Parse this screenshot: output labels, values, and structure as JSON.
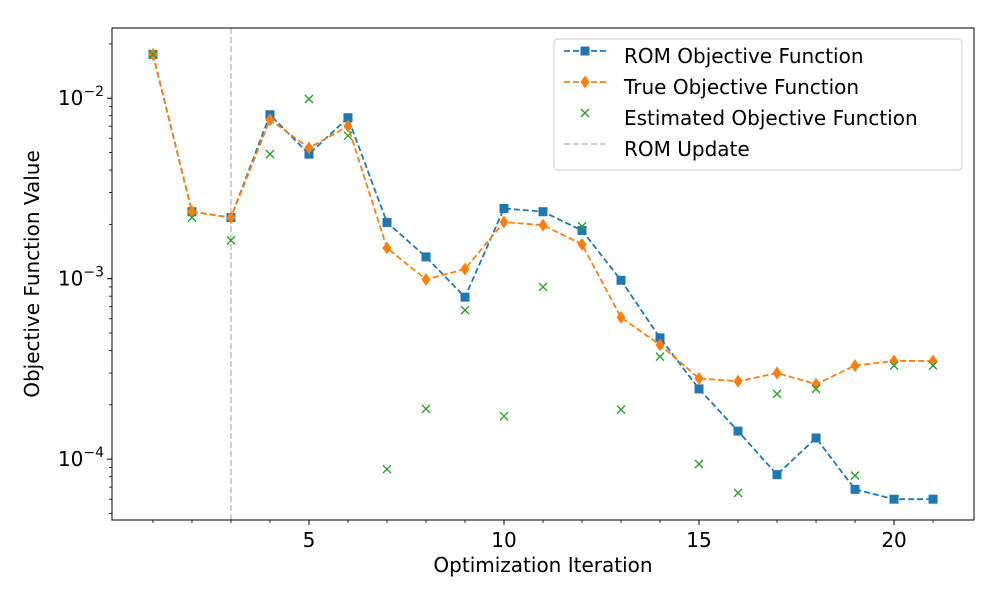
{
  "chart_data": {
    "type": "line",
    "title": "",
    "xlabel": "Optimization Iteration",
    "ylabel": "Objective Function Value",
    "yscale": "log",
    "xlim": [
      -0.05,
      22.05
    ],
    "ylim": [
      4.6e-05,
      0.0245
    ],
    "x_ticks": [
      5,
      10,
      15,
      20
    ],
    "x_tick_labels": [
      "5",
      "10",
      "15",
      "20"
    ],
    "y_ticks": [
      0.0001,
      0.001,
      0.01
    ],
    "y_tick_labels": [
      {
        "base": "10",
        "exp": "−4"
      },
      {
        "base": "10",
        "exp": "−3"
      },
      {
        "base": "10",
        "exp": "−2"
      }
    ],
    "x": [
      1,
      2,
      3,
      4,
      5,
      6,
      7,
      8,
      9,
      10,
      11,
      12,
      13,
      14,
      15,
      16,
      17,
      18,
      19,
      20,
      21
    ],
    "series": [
      {
        "name": "ROM Objective Function",
        "color": "#1f77b4",
        "style": "dashed-line-square",
        "values": [
          0.0175,
          0.00235,
          0.00218,
          0.0081,
          0.0049,
          0.0078,
          0.00205,
          0.00132,
          0.00079,
          0.00245,
          0.00235,
          0.00185,
          0.00098,
          0.00047,
          0.000245,
          0.000143,
          8.2e-05,
          0.000131,
          6.8e-05,
          6e-05,
          6e-05
        ]
      },
      {
        "name": "True Objective Function",
        "color": "#ff7f0e",
        "style": "dashed-line-diamond",
        "values": [
          0.0175,
          0.00235,
          0.00218,
          0.0076,
          0.0053,
          0.007,
          0.00148,
          0.00099,
          0.00113,
          0.00206,
          0.00198,
          0.00155,
          0.00061,
          0.00043,
          0.00028,
          0.00027,
          0.0003,
          0.00026,
          0.00033,
          0.00035,
          0.00035
        ]
      },
      {
        "name": "Estimated Objective Function",
        "color": "#2ca02c",
        "style": "x-marker",
        "values": [
          0.0175,
          0.00218,
          0.00163,
          0.0049,
          0.0099,
          0.0062,
          8.8e-05,
          0.00019,
          0.00067,
          0.000173,
          0.0009,
          0.00195,
          0.000188,
          0.00037,
          9.4e-05,
          6.5e-05,
          0.00023,
          0.000245,
          8.1e-05,
          0.00033,
          0.00033
        ]
      }
    ],
    "vlines": [
      {
        "name": "ROM Update",
        "x": 3,
        "color": "#c0c0c0"
      }
    ],
    "legend": {
      "position": "top-right",
      "entries": [
        "ROM Objective Function",
        "True Objective Function",
        "Estimated Objective Function",
        "ROM Update"
      ]
    }
  }
}
